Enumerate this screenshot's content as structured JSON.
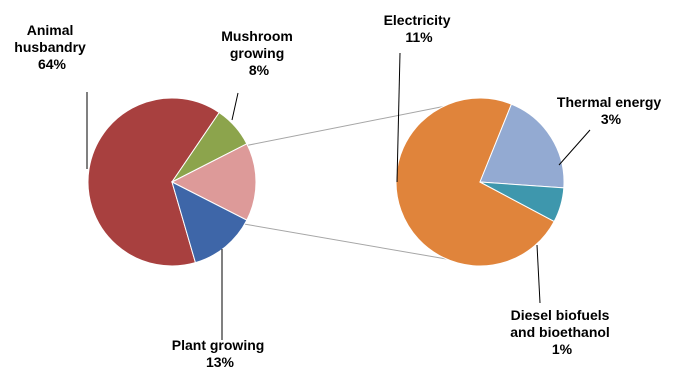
{
  "chart_data": {
    "type": "pie",
    "title": "",
    "charts": [
      {
        "name": "",
        "slices": [
          {
            "label_lines": [
              "Animal",
              "husbandry",
              "64%"
            ],
            "value": 64,
            "color": "#a8403f"
          },
          {
            "label_lines": [
              "Mushroom",
              "growing",
              "8%"
            ],
            "value": 8,
            "color": "#8ca44c"
          },
          {
            "label_lines": [
              "",
              "",
              ""
            ],
            "value": 15,
            "color": "#dd9a99"
          },
          {
            "label_lines": [
              "Plant growing",
              "13%"
            ],
            "value": 13,
            "color": "#3e66a8"
          }
        ]
      },
      {
        "name": "",
        "slices": [
          {
            "label_lines": [
              "Electricity",
              "11%"
            ],
            "value": 11,
            "color": "#e0843b"
          },
          {
            "label_lines": [
              "Thermal energy",
              "3%"
            ],
            "value": 3,
            "color": "#93aad2"
          },
          {
            "label_lines": [
              "Diesel biofuels",
              "and bioethanol",
              "1%"
            ],
            "value": 1,
            "color": "#3e97ad"
          }
        ]
      }
    ],
    "legend": "none"
  }
}
